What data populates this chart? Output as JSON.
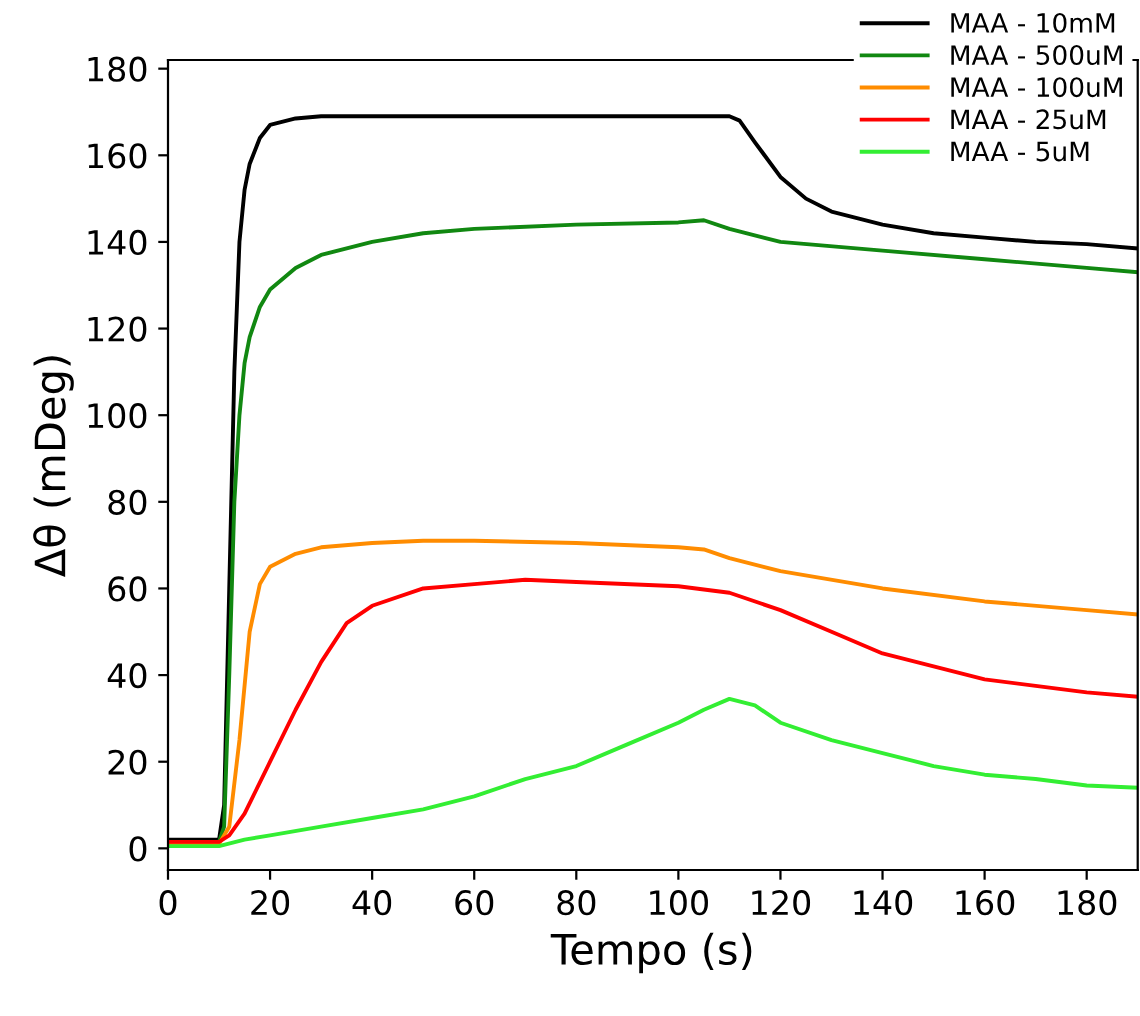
{
  "chart_data": {
    "type": "line",
    "xlabel": "Tempo (s)",
    "ylabel": "Δθ (mDeg)",
    "xlim": [
      0,
      190
    ],
    "ylim": [
      -5,
      182
    ],
    "xticks": [
      0,
      20,
      40,
      60,
      80,
      100,
      120,
      140,
      160,
      180
    ],
    "yticks": [
      0,
      20,
      40,
      60,
      80,
      100,
      120,
      140,
      160,
      180
    ],
    "grid": false,
    "legend": "top right",
    "marker": "none",
    "line_style": "solid",
    "series": [
      {
        "name": "MAA - 10mM",
        "color": "#000000",
        "x": [
          0,
          5,
          10,
          11,
          12,
          13,
          14,
          15,
          16,
          18,
          20,
          25,
          30,
          50,
          70,
          90,
          110,
          112,
          115,
          120,
          125,
          130,
          140,
          150,
          160,
          170,
          180,
          190
        ],
        "values": [
          2,
          2,
          2,
          10,
          60,
          110,
          140,
          152,
          158,
          164,
          167,
          168.5,
          169,
          169,
          169,
          169,
          169,
          168,
          163,
          155,
          150,
          147,
          144,
          142,
          141,
          140,
          139.5,
          138.5
        ]
      },
      {
        "name": "MAA - 500uM",
        "color": "#118811",
        "x": [
          0,
          5,
          10,
          11,
          12,
          13,
          14,
          15,
          16,
          18,
          20,
          25,
          30,
          40,
          50,
          60,
          80,
          100,
          105,
          110,
          120,
          140,
          160,
          180,
          190
        ],
        "values": [
          1.5,
          1.5,
          1.5,
          5,
          40,
          80,
          100,
          112,
          118,
          125,
          129,
          134,
          137,
          140,
          142,
          143,
          144,
          144.5,
          145,
          143,
          140,
          138,
          136,
          134,
          133
        ]
      },
      {
        "name": "MAA - 100uM",
        "color": "#ff8c00",
        "x": [
          0,
          5,
          10,
          12,
          14,
          16,
          18,
          20,
          25,
          30,
          40,
          50,
          60,
          80,
          100,
          105,
          110,
          120,
          140,
          160,
          180,
          190
        ],
        "values": [
          1,
          1,
          1,
          5,
          25,
          50,
          61,
          65,
          68,
          69.5,
          70.5,
          71,
          71,
          70.5,
          69.5,
          69,
          67,
          64,
          60,
          57,
          55,
          54
        ]
      },
      {
        "name": "MAA - 25uM",
        "color": "#ff0000",
        "x": [
          0,
          5,
          10,
          12,
          15,
          20,
          25,
          30,
          35,
          40,
          50,
          60,
          70,
          80,
          100,
          110,
          120,
          130,
          140,
          150,
          160,
          170,
          180,
          190
        ],
        "values": [
          1.5,
          1.5,
          1.5,
          3,
          8,
          20,
          32,
          43,
          52,
          56,
          60,
          61,
          62,
          61.5,
          60.5,
          59,
          55,
          50,
          45,
          42,
          39,
          37.5,
          36,
          35
        ]
      },
      {
        "name": "MAA - 5uM",
        "color": "#33ee33",
        "x": [
          0,
          10,
          15,
          20,
          30,
          40,
          50,
          60,
          70,
          80,
          90,
          100,
          105,
          110,
          115,
          120,
          130,
          140,
          150,
          160,
          170,
          180,
          190
        ],
        "values": [
          0.5,
          0.5,
          2,
          3,
          5,
          7,
          9,
          12,
          16,
          19,
          24,
          29,
          32,
          34.5,
          33,
          29,
          25,
          22,
          19,
          17,
          16,
          14.5,
          14
        ]
      }
    ]
  }
}
